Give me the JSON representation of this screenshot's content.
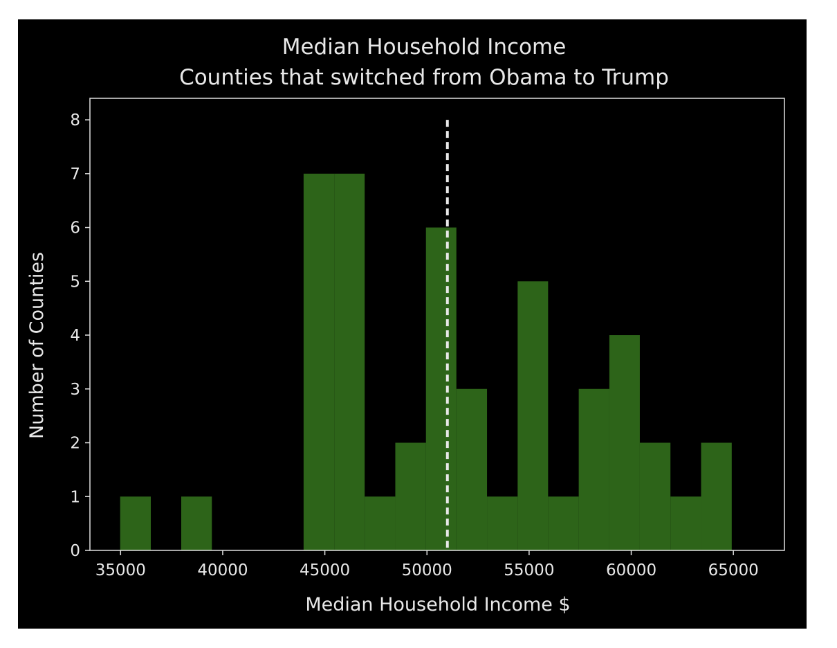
{
  "chart_data": {
    "type": "bar",
    "title": "Median Household Income",
    "subtitle": "Counties that switched from Obama to Trump",
    "xlabel": "Median Household Income $",
    "ylabel": "Number of Counties",
    "xlim": [
      33500,
      67500
    ],
    "ylim": [
      0,
      8.4
    ],
    "x_ticks": [
      35000,
      40000,
      45000,
      50000,
      55000,
      60000,
      65000
    ],
    "y_ticks": [
      0,
      1,
      2,
      3,
      4,
      5,
      6,
      7,
      8
    ],
    "bins": [
      {
        "x0": 34980,
        "x1": 36480,
        "count": 1
      },
      {
        "x0": 36480,
        "x1": 37970,
        "count": 0
      },
      {
        "x0": 37970,
        "x1": 39470,
        "count": 1
      },
      {
        "x0": 39470,
        "x1": 40970,
        "count": 0
      },
      {
        "x0": 40970,
        "x1": 42460,
        "count": 0
      },
      {
        "x0": 42460,
        "x1": 43960,
        "count": 0
      },
      {
        "x0": 43960,
        "x1": 45460,
        "count": 7
      },
      {
        "x0": 45460,
        "x1": 46950,
        "count": 7
      },
      {
        "x0": 46950,
        "x1": 48450,
        "count": 1
      },
      {
        "x0": 48450,
        "x1": 49950,
        "count": 2
      },
      {
        "x0": 49950,
        "x1": 51440,
        "count": 6
      },
      {
        "x0": 51440,
        "x1": 52940,
        "count": 3
      },
      {
        "x0": 52940,
        "x1": 54440,
        "count": 1
      },
      {
        "x0": 54440,
        "x1": 55930,
        "count": 5
      },
      {
        "x0": 55930,
        "x1": 57430,
        "count": 1
      },
      {
        "x0": 57430,
        "x1": 58930,
        "count": 3
      },
      {
        "x0": 58930,
        "x1": 60420,
        "count": 4
      },
      {
        "x0": 60420,
        "x1": 61920,
        "count": 2
      },
      {
        "x0": 61920,
        "x1": 63420,
        "count": 1
      },
      {
        "x0": 63420,
        "x1": 64920,
        "count": 2
      }
    ],
    "median_line": {
      "x": 51000,
      "y_top": 8,
      "style": "dashed"
    },
    "colors": {
      "background": "#000000",
      "bar": "#2d6419",
      "axes": "#e0e0e0",
      "median_line": "#e8e8e8"
    },
    "grid": false,
    "legend": "none"
  }
}
